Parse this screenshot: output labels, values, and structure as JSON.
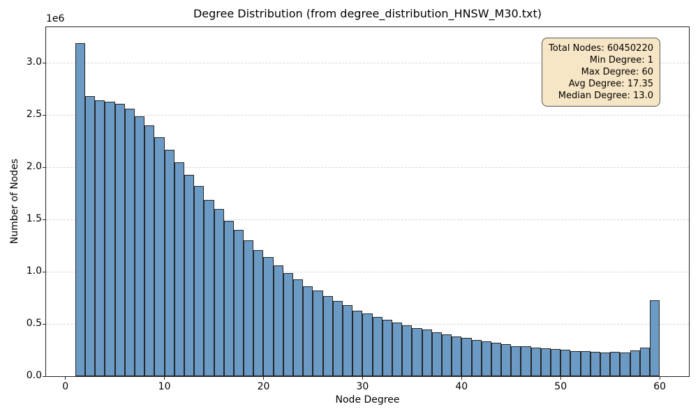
{
  "chart_data": {
    "type": "bar",
    "subtype": "histogram",
    "title": "Degree Distribution (from degree_distribution_HNSW_M30.txt)",
    "xlabel": "Node Degree",
    "ylabel": "Number of Nodes",
    "offset_text": "1e6",
    "bins": {
      "start": 1,
      "width": 1,
      "count": 59
    },
    "values": [
      3190000,
      2680000,
      2640000,
      2630000,
      2610000,
      2560000,
      2490000,
      2400000,
      2290000,
      2170000,
      2050000,
      1930000,
      1820000,
      1690000,
      1600000,
      1490000,
      1400000,
      1300000,
      1210000,
      1140000,
      1060000,
      990000,
      930000,
      860000,
      820000,
      770000,
      720000,
      680000,
      630000,
      600000,
      565000,
      540000,
      515000,
      490000,
      462000,
      444000,
      420000,
      400000,
      380000,
      365000,
      350000,
      335000,
      320000,
      305000,
      290000,
      285000,
      276000,
      268000,
      258000,
      252000,
      242000,
      238000,
      233000,
      228000,
      232000,
      230000,
      245000,
      275000,
      730000
    ],
    "xlim": [
      -1.95,
      62.95
    ],
    "ylim": [
      0,
      3340000
    ],
    "xticks": [
      {
        "v": 0,
        "label": "0"
      },
      {
        "v": 10,
        "label": "10"
      },
      {
        "v": 20,
        "label": "20"
      },
      {
        "v": 30,
        "label": "30"
      },
      {
        "v": 40,
        "label": "40"
      },
      {
        "v": 50,
        "label": "50"
      },
      {
        "v": 60,
        "label": "60"
      }
    ],
    "yticks": [
      {
        "v": 0,
        "label": "0.0"
      },
      {
        "v": 500000,
        "label": "0.5"
      },
      {
        "v": 1000000,
        "label": "1.0"
      },
      {
        "v": 1500000,
        "label": "1.5"
      },
      {
        "v": 2000000,
        "label": "2.0"
      },
      {
        "v": 2500000,
        "label": "2.5"
      },
      {
        "v": 3000000,
        "label": "3.0"
      }
    ],
    "grid": {
      "axis": "y",
      "style": "dashed",
      "color": "#d5d5d5"
    },
    "colors": {
      "bar_fill": "#6b9ac4",
      "bar_edge": "#262626",
      "spine": "#222222"
    },
    "annotation_box": {
      "position": "top-right",
      "align": "right",
      "bg": "#f7e6c5",
      "border": "#555555",
      "lines": [
        "Total Nodes: 60450220",
        "Min Degree: 1",
        "Max Degree: 60",
        "Avg Degree: 17.35",
        "Median Degree: 13.0"
      ]
    }
  }
}
